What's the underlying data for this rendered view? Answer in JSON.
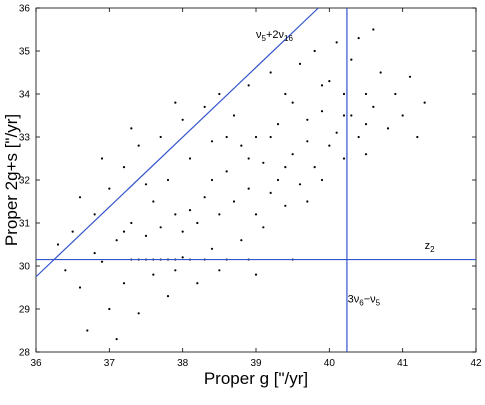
{
  "chart_data": {
    "type": "scatter",
    "x_label": "Proper g [\"/yr]",
    "y_label": "Proper 2g+s [\"/yr]",
    "color": "#000000",
    "x": [
      36.5,
      36.6,
      36.7,
      36.8,
      36.9,
      37.0,
      37.0,
      37.1,
      37.2,
      37.2,
      37.3,
      37.3,
      37.4,
      37.4,
      37.5,
      37.5,
      37.6,
      37.6,
      37.7,
      37.7,
      37.8,
      37.8,
      37.9,
      37.9,
      38.0,
      38.0,
      38.1,
      38.1,
      38.2,
      38.2,
      38.3,
      38.3,
      38.4,
      38.4,
      38.5,
      38.5,
      38.6,
      38.6,
      38.7,
      38.7,
      38.8,
      38.8,
      38.9,
      38.9,
      39.0,
      39.0,
      39.1,
      39.1,
      39.2,
      39.2,
      39.3,
      39.3,
      39.4,
      39.4,
      39.5,
      39.5,
      39.6,
      39.6,
      39.7,
      39.7,
      39.8,
      39.8,
      39.9,
      39.9,
      40.0,
      40.0,
      40.1,
      40.1,
      40.2,
      40.2,
      40.3,
      40.3,
      40.4,
      40.4,
      40.5,
      40.5,
      40.6,
      40.6,
      40.7,
      40.8,
      40.9,
      41.0,
      41.1,
      41.2,
      41.3,
      36.3,
      36.4,
      36.6,
      36.9,
      37.1,
      37.4,
      37.6,
      37.7,
      37.9,
      38.0,
      38.3,
      38.9,
      39.5,
      37.2,
      37.5,
      37.8,
      38.1,
      38.4,
      38.6,
      38.9,
      39.2,
      39.4,
      39.7,
      39.9,
      40.2,
      40.5,
      37.3,
      37.9,
      38.5,
      39.0,
      36.8
    ],
    "values": [
      30.8,
      29.5,
      28.5,
      31.2,
      30.1,
      29.0,
      31.8,
      30.6,
      32.3,
      29.6,
      30.15,
      31.0,
      28.9,
      32.8,
      30.7,
      30.15,
      31.5,
      29.8,
      33.0,
      30.9,
      30.15,
      32.0,
      29.9,
      31.2,
      33.4,
      30.8,
      30.15,
      32.5,
      31.0,
      29.6,
      33.7,
      31.6,
      30.4,
      32.9,
      31.2,
      34.0,
      30.15,
      32.2,
      31.5,
      33.5,
      30.6,
      32.8,
      31.8,
      34.2,
      31.2,
      33.0,
      32.4,
      30.9,
      34.5,
      31.7,
      33.3,
      32.0,
      31.4,
      34.0,
      32.6,
      33.8,
      31.9,
      34.7,
      32.9,
      33.4,
      32.3,
      35.0,
      33.6,
      32.0,
      34.3,
      32.8,
      33.1,
      35.2,
      34.0,
      32.5,
      33.5,
      34.8,
      33.0,
      35.3,
      34.0,
      32.6,
      33.7,
      35.5,
      34.5,
      33.2,
      34.0,
      33.5,
      34.4,
      33.0,
      33.8,
      30.5,
      29.9,
      31.6,
      32.5,
      28.3,
      30.15,
      30.15,
      30.15,
      30.15,
      30.2,
      30.15,
      30.15,
      30.15,
      30.8,
      31.9,
      29.3,
      31.3,
      32.0,
      33.0,
      32.5,
      33.0,
      32.3,
      31.5,
      34.2,
      33.5,
      33.3,
      33.2,
      33.8,
      29.9,
      29.8,
      30.3
    ],
    "xlim": [
      36,
      42
    ],
    "xticks": [
      36,
      37,
      38,
      39,
      40,
      41,
      42
    ],
    "ylim": [
      28,
      36
    ],
    "yticks": [
      28,
      29,
      30,
      31,
      32,
      33,
      34,
      35,
      36
    ],
    "lines": [
      {
        "color": "#3355cc",
        "x": [
          36,
          39.85
        ],
        "y": [
          29.75,
          36
        ],
        "label": [
          [
            "ν",
            "5"
          ],
          [
            "+2ν",
            "16"
          ]
        ],
        "label_x": 39.0,
        "label_y": 35.3
      },
      {
        "color": "#3355cc",
        "x": [
          40.24,
          40.24
        ],
        "y": [
          28,
          36
        ],
        "label": [
          [
            "3ν",
            "6"
          ],
          [
            "−ν",
            "5"
          ]
        ],
        "label_x": 40.25,
        "label_y": 29.15
      },
      {
        "color": "#3355cc",
        "x": [
          36,
          42
        ],
        "y": [
          30.15,
          30.15
        ],
        "label": [
          [
            "z",
            "2"
          ]
        ],
        "label_x": 41.3,
        "label_y": 30.4
      }
    ]
  }
}
